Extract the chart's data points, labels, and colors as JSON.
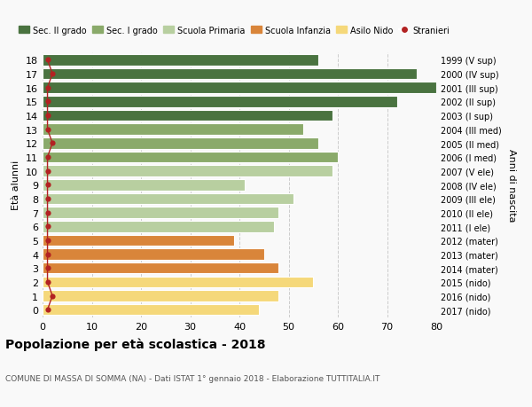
{
  "ages": [
    18,
    17,
    16,
    15,
    14,
    13,
    12,
    11,
    10,
    9,
    8,
    7,
    6,
    5,
    4,
    3,
    2,
    1,
    0
  ],
  "years": [
    "1999 (V sup)",
    "2000 (IV sup)",
    "2001 (III sup)",
    "2002 (II sup)",
    "2003 (I sup)",
    "2004 (III med)",
    "2005 (II med)",
    "2006 (I med)",
    "2007 (V ele)",
    "2008 (IV ele)",
    "2009 (III ele)",
    "2010 (II ele)",
    "2011 (I ele)",
    "2012 (mater)",
    "2013 (mater)",
    "2014 (mater)",
    "2015 (nido)",
    "2016 (nido)",
    "2017 (nido)"
  ],
  "values": [
    56,
    76,
    80,
    72,
    59,
    53,
    56,
    60,
    59,
    41,
    51,
    48,
    47,
    39,
    45,
    48,
    55,
    48,
    44
  ],
  "stranieri": [
    1,
    2,
    1,
    1,
    1,
    1,
    2,
    1,
    1,
    1,
    1,
    1,
    1,
    1,
    1,
    1,
    1,
    2,
    1
  ],
  "bar_colors": [
    "#4a7340",
    "#4a7340",
    "#4a7340",
    "#4a7340",
    "#4a7340",
    "#8aaa6a",
    "#8aaa6a",
    "#8aaa6a",
    "#b8cfa0",
    "#b8cfa0",
    "#b8cfa0",
    "#b8cfa0",
    "#b8cfa0",
    "#d9853a",
    "#d9853a",
    "#d9853a",
    "#f5d87a",
    "#f5d87a",
    "#f5d87a"
  ],
  "legend_labels": [
    "Sec. II grado",
    "Sec. I grado",
    "Scuola Primaria",
    "Scuola Infanzia",
    "Asilo Nido",
    "Stranieri"
  ],
  "legend_colors": [
    "#4a7340",
    "#8aaa6a",
    "#b8cfa0",
    "#d9853a",
    "#f5d87a",
    "#b22222"
  ],
  "stranieri_color": "#b22222",
  "title": "Popolazione per età scolastica - 2018",
  "subtitle": "COMUNE DI MASSA DI SOMMA (NA) - Dati ISTAT 1° gennaio 2018 - Elaborazione TUTTITALIA.IT",
  "ylabel": "Età alunni",
  "ylabel_right": "Anni di nascita",
  "xlim": [
    0,
    80
  ],
  "xticks": [
    0,
    10,
    20,
    30,
    40,
    50,
    60,
    70,
    80
  ],
  "bar_height": 0.8,
  "bg_color": "#f9f9f9",
  "grid_color": "#cccccc"
}
